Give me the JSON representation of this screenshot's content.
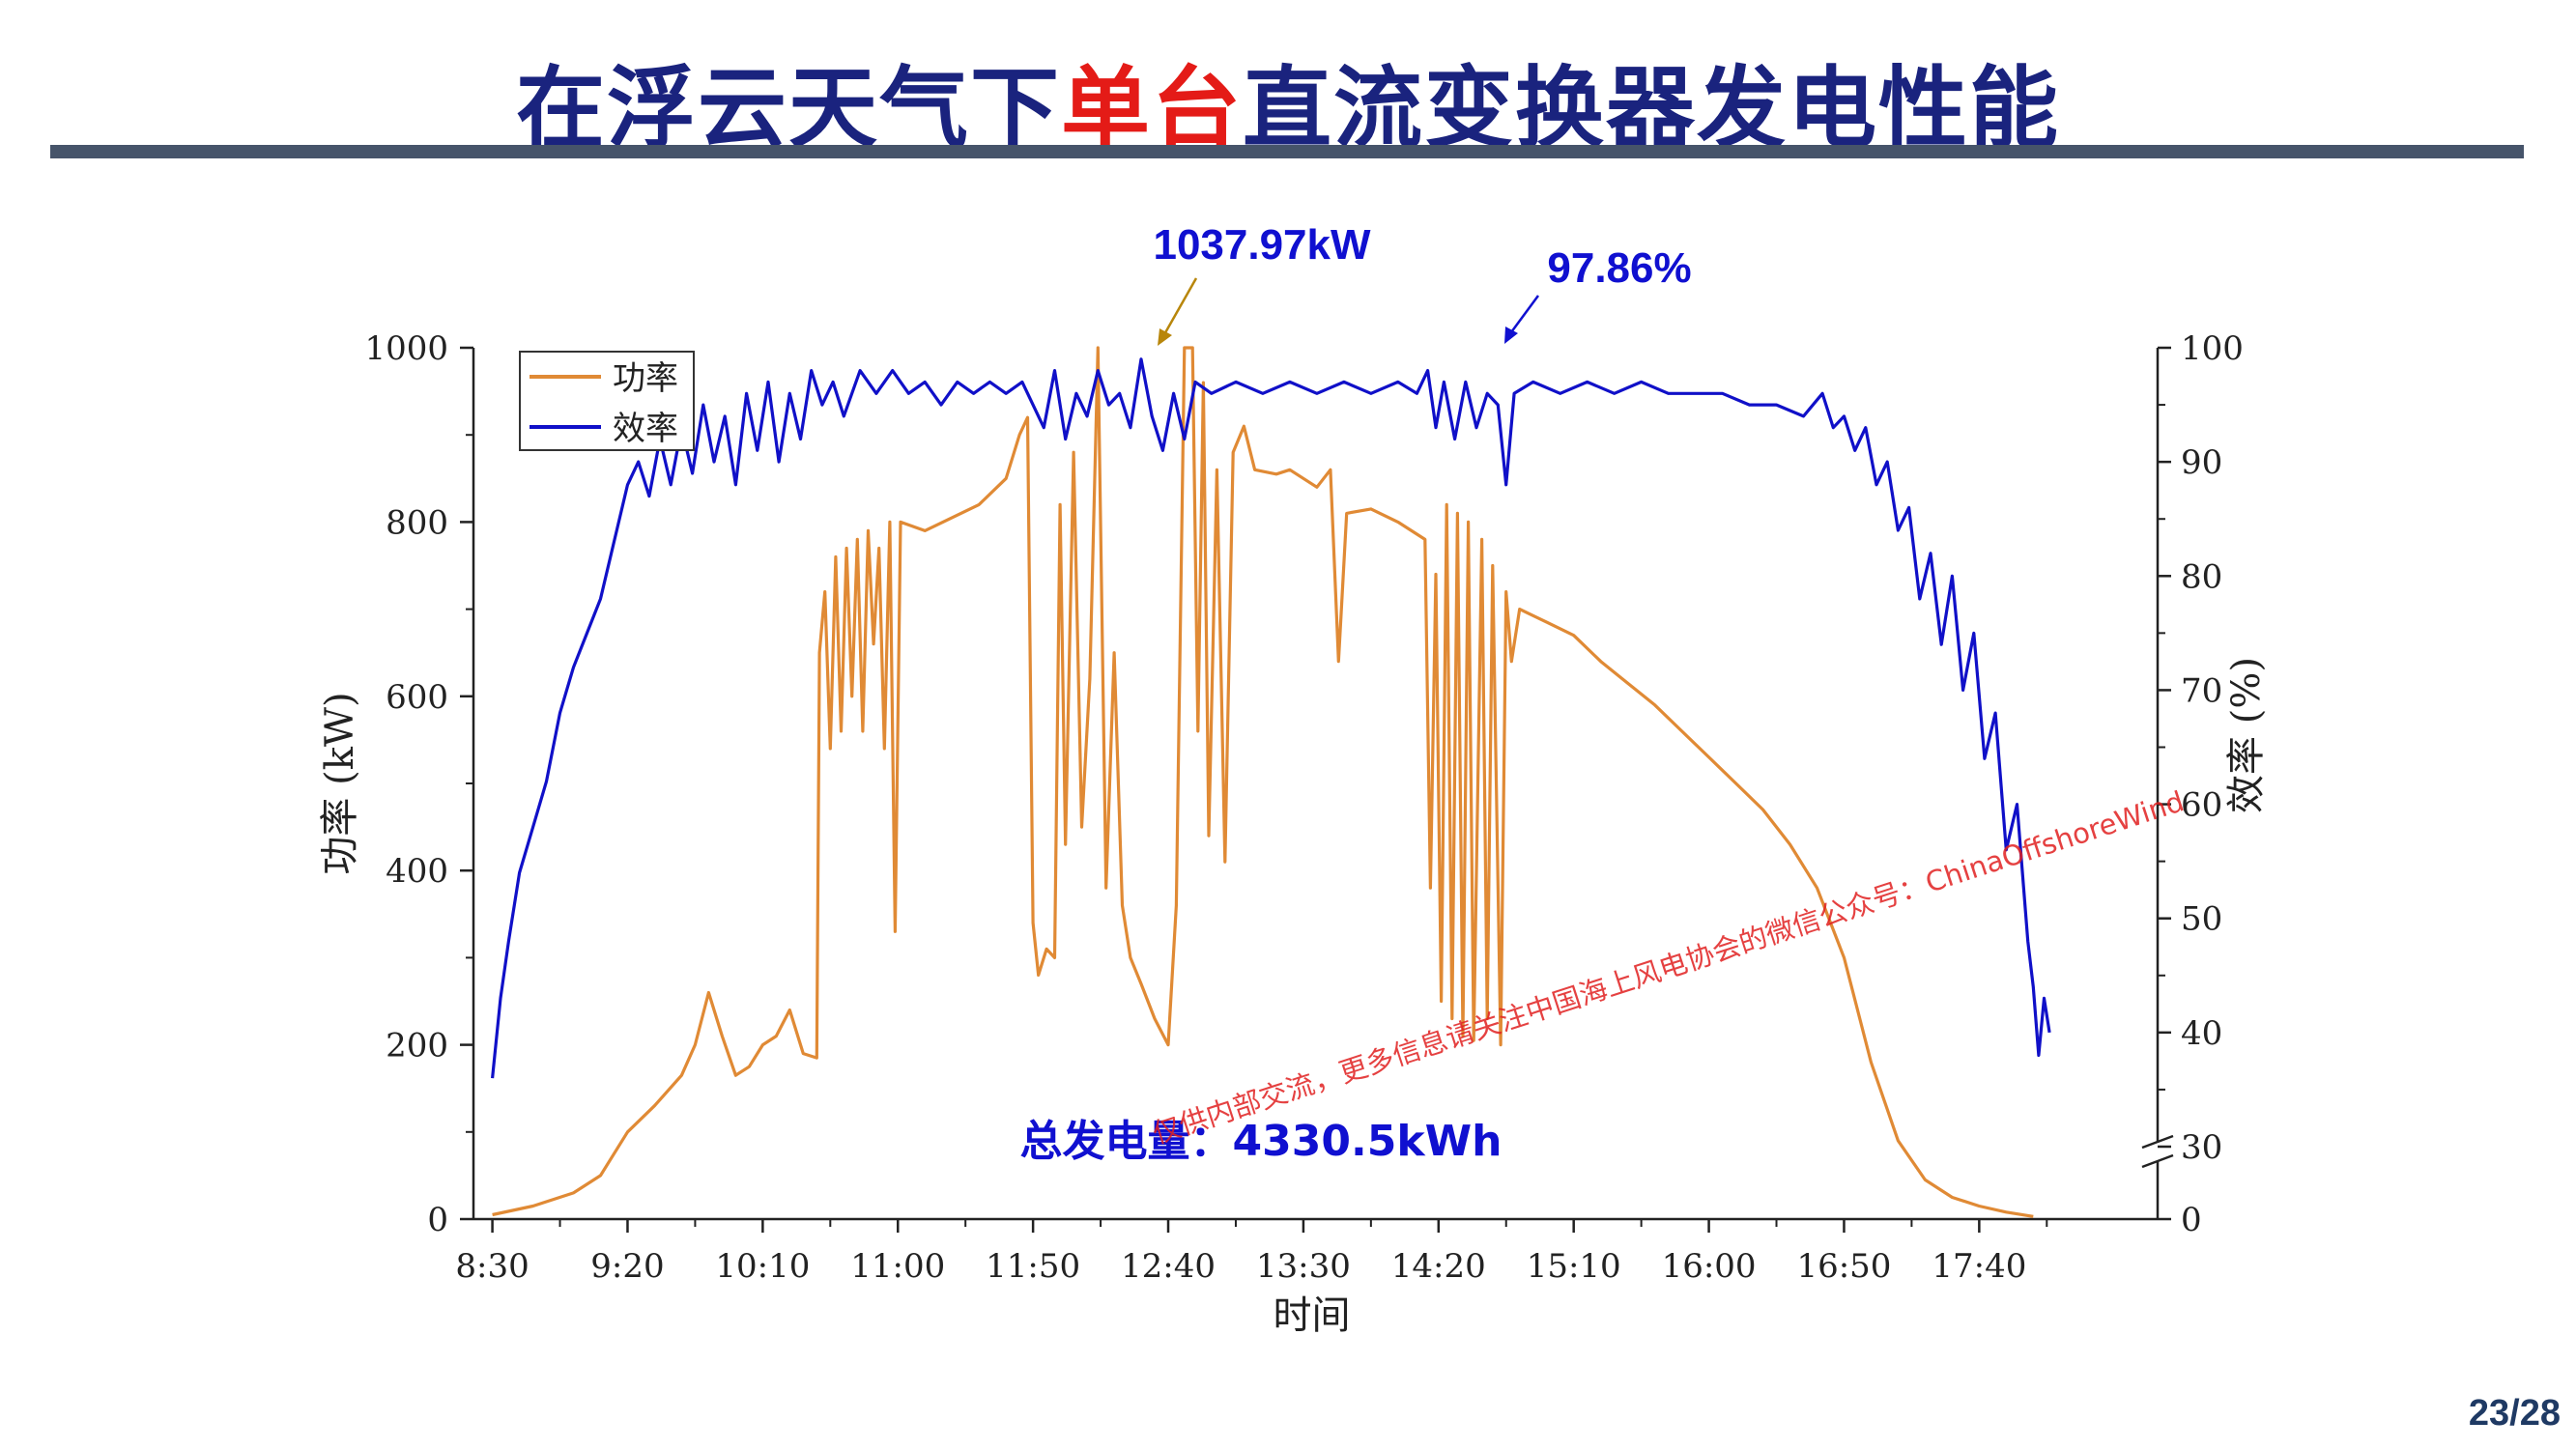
{
  "slide": {
    "title_parts": [
      {
        "text": "在浮云天气下",
        "color": "blue"
      },
      {
        "text": "单台",
        "color": "red"
      },
      {
        "text": "直流变换器发电性能",
        "color": "blue"
      }
    ],
    "page_number": "23/28",
    "watermark": "仅供内部交流，更多信息请关注中国海上风电协会的微信公众号：ChinaOffshoreWind"
  },
  "colors": {
    "power": "#e08a35",
    "efficiency": "#1010c8",
    "annotation_blue": "#1010d0",
    "annotation_arrow_gold": "#b8860b",
    "title_blue": "#1a237e",
    "title_red": "#e41b17",
    "watermark": "#e02020"
  },
  "chart_data": {
    "type": "line",
    "xlabel": "时间",
    "ylabel_left": "功率 (kW)",
    "ylabel_right": "效率 (%)",
    "x_ticks": [
      "8:30",
      "9:20",
      "10:10",
      "11:00",
      "11:50",
      "12:40",
      "13:30",
      "14:20",
      "15:10",
      "16:00",
      "16:50",
      "17:40"
    ],
    "xlim": [
      "8:23",
      "18:46"
    ],
    "ylim_left": [
      0,
      1000
    ],
    "y_ticks_left": [
      0,
      200,
      400,
      600,
      800,
      1000
    ],
    "ylim_right": [
      30,
      100
    ],
    "y_ticks_right": [
      0,
      30,
      40,
      50,
      60,
      70,
      80,
      90,
      100
    ],
    "right_axis_break": "between 0 and 30",
    "legend": {
      "position": "top-left",
      "entries": [
        "功率",
        "效率"
      ]
    },
    "annotations": {
      "peak_power": "1037.97kW",
      "peak_efficiency": "97.86%",
      "total_energy": "总发电量：4330.5kWh"
    },
    "series": [
      {
        "name": "功率",
        "axis": "left",
        "points": [
          [
            "8:30",
            5
          ],
          [
            "8:45",
            15
          ],
          [
            "9:00",
            30
          ],
          [
            "9:10",
            50
          ],
          [
            "9:15",
            75
          ],
          [
            "9:20",
            100
          ],
          [
            "9:30",
            130
          ],
          [
            "9:40",
            165
          ],
          [
            "9:45",
            200
          ],
          [
            "9:50",
            260
          ],
          [
            "9:55",
            210
          ],
          [
            "10:00",
            165
          ],
          [
            "10:05",
            175
          ],
          [
            "10:10",
            200
          ],
          [
            "10:15",
            210
          ],
          [
            "10:20",
            240
          ],
          [
            "10:25",
            190
          ],
          [
            "10:30",
            185
          ],
          [
            "10:31",
            650
          ],
          [
            "10:33",
            720
          ],
          [
            "10:35",
            540
          ],
          [
            "10:37",
            760
          ],
          [
            "10:39",
            560
          ],
          [
            "10:41",
            770
          ],
          [
            "10:43",
            600
          ],
          [
            "10:45",
            780
          ],
          [
            "10:47",
            560
          ],
          [
            "10:49",
            790
          ],
          [
            "10:51",
            660
          ],
          [
            "10:53",
            770
          ],
          [
            "10:55",
            540
          ],
          [
            "10:57",
            800
          ],
          [
            "10:59",
            330
          ],
          [
            "11:01",
            800
          ],
          [
            "11:10",
            790
          ],
          [
            "11:20",
            805
          ],
          [
            "11:30",
            820
          ],
          [
            "11:40",
            850
          ],
          [
            "11:45",
            900
          ],
          [
            "11:48",
            920
          ],
          [
            "11:50",
            340
          ],
          [
            "11:52",
            280
          ],
          [
            "11:55",
            310
          ],
          [
            "11:58",
            300
          ],
          [
            "12:00",
            820
          ],
          [
            "12:02",
            430
          ],
          [
            "12:05",
            880
          ],
          [
            "12:08",
            450
          ],
          [
            "12:11",
            620
          ],
          [
            "12:14",
            1000
          ],
          [
            "12:17",
            380
          ],
          [
            "12:20",
            650
          ],
          [
            "12:23",
            360
          ],
          [
            "12:26",
            300
          ],
          [
            "12:30",
            270
          ],
          [
            "12:35",
            230
          ],
          [
            "12:40",
            200
          ],
          [
            "12:43",
            360
          ],
          [
            "12:46",
            1000
          ],
          [
            "12:49",
            1000
          ],
          [
            "12:51",
            560
          ],
          [
            "12:53",
            960
          ],
          [
            "12:55",
            440
          ],
          [
            "12:58",
            860
          ],
          [
            "13:01",
            410
          ],
          [
            "13:04",
            880
          ],
          [
            "13:08",
            910
          ],
          [
            "13:12",
            860
          ],
          [
            "13:20",
            855
          ],
          [
            "13:25",
            860
          ],
          [
            "13:30",
            850
          ],
          [
            "13:35",
            840
          ],
          [
            "13:40",
            860
          ],
          [
            "13:43",
            640
          ],
          [
            "13:46",
            810
          ],
          [
            "13:55",
            815
          ],
          [
            "14:05",
            800
          ],
          [
            "14:10",
            790
          ],
          [
            "14:15",
            780
          ],
          [
            "14:17",
            380
          ],
          [
            "14:19",
            740
          ],
          [
            "14:21",
            250
          ],
          [
            "14:23",
            820
          ],
          [
            "14:25",
            230
          ],
          [
            "14:27",
            810
          ],
          [
            "14:29",
            210
          ],
          [
            "14:31",
            800
          ],
          [
            "14:33",
            205
          ],
          [
            "14:36",
            780
          ],
          [
            "14:38",
            230
          ],
          [
            "14:40",
            750
          ],
          [
            "14:43",
            200
          ],
          [
            "14:45",
            720
          ],
          [
            "14:47",
            640
          ],
          [
            "14:50",
            700
          ],
          [
            "15:00",
            685
          ],
          [
            "15:10",
            670
          ],
          [
            "15:20",
            640
          ],
          [
            "15:30",
            615
          ],
          [
            "15:40",
            590
          ],
          [
            "15:50",
            560
          ],
          [
            "16:00",
            530
          ],
          [
            "16:10",
            500
          ],
          [
            "16:20",
            470
          ],
          [
            "16:30",
            430
          ],
          [
            "16:40",
            380
          ],
          [
            "16:50",
            300
          ],
          [
            "17:00",
            180
          ],
          [
            "17:10",
            90
          ],
          [
            "17:20",
            45
          ],
          [
            "17:30",
            25
          ],
          [
            "17:40",
            15
          ],
          [
            "17:50",
            8
          ],
          [
            "18:00",
            3
          ]
        ]
      },
      {
        "name": "效率",
        "axis": "right",
        "points": [
          [
            "8:30",
            36
          ],
          [
            "8:33",
            43
          ],
          [
            "8:36",
            48
          ],
          [
            "8:40",
            54
          ],
          [
            "8:45",
            58
          ],
          [
            "8:50",
            62
          ],
          [
            "8:55",
            68
          ],
          [
            "9:00",
            72
          ],
          [
            "9:05",
            75
          ],
          [
            "9:10",
            78
          ],
          [
            "9:15",
            83
          ],
          [
            "9:20",
            88
          ],
          [
            "9:24",
            90
          ],
          [
            "9:28",
            87
          ],
          [
            "9:32",
            92
          ],
          [
            "9:36",
            88
          ],
          [
            "9:40",
            93
          ],
          [
            "9:44",
            89
          ],
          [
            "9:48",
            95
          ],
          [
            "9:52",
            90
          ],
          [
            "9:56",
            94
          ],
          [
            "10:00",
            88
          ],
          [
            "10:04",
            96
          ],
          [
            "10:08",
            91
          ],
          [
            "10:12",
            97
          ],
          [
            "10:16",
            90
          ],
          [
            "10:20",
            96
          ],
          [
            "10:24",
            92
          ],
          [
            "10:28",
            98
          ],
          [
            "10:32",
            95
          ],
          [
            "10:36",
            97
          ],
          [
            "10:40",
            94
          ],
          [
            "10:46",
            98
          ],
          [
            "10:52",
            96
          ],
          [
            "10:58",
            98
          ],
          [
            "11:04",
            96
          ],
          [
            "11:10",
            97
          ],
          [
            "11:16",
            95
          ],
          [
            "11:22",
            97
          ],
          [
            "11:28",
            96
          ],
          [
            "11:34",
            97
          ],
          [
            "11:40",
            96
          ],
          [
            "11:46",
            97
          ],
          [
            "11:50",
            95
          ],
          [
            "11:54",
            93
          ],
          [
            "11:58",
            98
          ],
          [
            "12:02",
            92
          ],
          [
            "12:06",
            96
          ],
          [
            "12:10",
            94
          ],
          [
            "12:14",
            98
          ],
          [
            "12:18",
            95
          ],
          [
            "12:22",
            96
          ],
          [
            "12:26",
            93
          ],
          [
            "12:30",
            99
          ],
          [
            "12:34",
            94
          ],
          [
            "12:38",
            91
          ],
          [
            "12:42",
            96
          ],
          [
            "12:46",
            92
          ],
          [
            "12:50",
            97
          ],
          [
            "12:56",
            96
          ],
          [
            "13:05",
            97
          ],
          [
            "13:15",
            96
          ],
          [
            "13:25",
            97
          ],
          [
            "13:35",
            96
          ],
          [
            "13:45",
            97
          ],
          [
            "13:55",
            96
          ],
          [
            "14:05",
            97
          ],
          [
            "14:12",
            96
          ],
          [
            "14:16",
            98
          ],
          [
            "14:19",
            93
          ],
          [
            "14:22",
            97
          ],
          [
            "14:26",
            92
          ],
          [
            "14:30",
            97
          ],
          [
            "14:34",
            93
          ],
          [
            "14:38",
            96
          ],
          [
            "14:42",
            95
          ],
          [
            "14:45",
            88
          ],
          [
            "14:48",
            96
          ],
          [
            "14:55",
            97
          ],
          [
            "15:05",
            96
          ],
          [
            "15:15",
            97
          ],
          [
            "15:25",
            96
          ],
          [
            "15:35",
            97
          ],
          [
            "15:45",
            96
          ],
          [
            "15:55",
            96
          ],
          [
            "16:05",
            96
          ],
          [
            "16:15",
            95
          ],
          [
            "16:25",
            95
          ],
          [
            "16:35",
            94
          ],
          [
            "16:42",
            96
          ],
          [
            "16:46",
            93
          ],
          [
            "16:50",
            94
          ],
          [
            "16:54",
            91
          ],
          [
            "16:58",
            93
          ],
          [
            "17:02",
            88
          ],
          [
            "17:06",
            90
          ],
          [
            "17:10",
            84
          ],
          [
            "17:14",
            86
          ],
          [
            "17:18",
            78
          ],
          [
            "17:22",
            82
          ],
          [
            "17:26",
            74
          ],
          [
            "17:30",
            80
          ],
          [
            "17:34",
            70
          ],
          [
            "17:38",
            75
          ],
          [
            "17:42",
            64
          ],
          [
            "17:46",
            68
          ],
          [
            "17:50",
            56
          ],
          [
            "17:54",
            60
          ],
          [
            "17:58",
            48
          ],
          [
            "18:00",
            44
          ],
          [
            "18:02",
            38
          ],
          [
            "18:04",
            43
          ],
          [
            "18:06",
            40
          ]
        ]
      }
    ]
  }
}
